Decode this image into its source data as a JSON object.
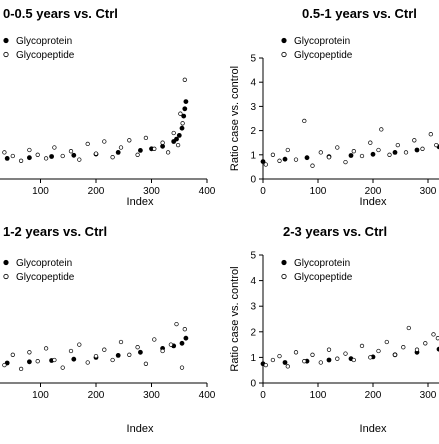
{
  "chart_data": [
    {
      "type": "scatter",
      "title": "0-0.5 years vs. Ctrl",
      "xlabel": "Index",
      "ylabel": "",
      "xlim": [
        0,
        400
      ],
      "ylim": [
        0,
        5
      ],
      "x_ticks": [
        "100",
        "200",
        "300",
        "400"
      ],
      "y_ticks": [],
      "legend_position": "top-left",
      "series": [
        {
          "name": "Glycoprotein",
          "marker": "filled-circle",
          "x": [
            0,
            40,
            80,
            120,
            160,
            200,
            240,
            280,
            300,
            320,
            340,
            345,
            350,
            355,
            358,
            360,
            362
          ],
          "y": [
            0.8,
            0.85,
            0.88,
            0.93,
            0.98,
            1.03,
            1.1,
            1.18,
            1.25,
            1.35,
            1.55,
            1.65,
            1.8,
            2.1,
            2.6,
            2.9,
            3.2
          ]
        },
        {
          "name": "Glycopeptide",
          "marker": "open-circle",
          "x": [
            5,
            20,
            35,
            50,
            65,
            80,
            95,
            110,
            125,
            140,
            155,
            170,
            185,
            200,
            215,
            230,
            245,
            260,
            275,
            290,
            305,
            320,
            330,
            340,
            348,
            352,
            356,
            360
          ],
          "y": [
            0.9,
            0.7,
            1.1,
            0.95,
            0.75,
            1.2,
            1.0,
            0.85,
            1.3,
            0.95,
            1.15,
            0.8,
            1.45,
            1.05,
            1.55,
            0.9,
            1.3,
            1.6,
            1.0,
            1.7,
            1.25,
            1.5,
            1.1,
            1.9,
            1.4,
            2.7,
            2.3,
            4.1
          ]
        }
      ]
    },
    {
      "type": "scatter",
      "title": "0.5-1 years vs. Ctrl",
      "xlabel": "Index",
      "ylabel": "Ratio case vs. control",
      "xlim": [
        0,
        320
      ],
      "ylim": [
        0,
        5
      ],
      "x_ticks": [
        "0",
        "100",
        "200",
        "300"
      ],
      "y_ticks": [
        "0",
        "1",
        "2",
        "3",
        "4",
        "5"
      ],
      "legend_position": "top-left",
      "series": [
        {
          "name": "Glycoprotein",
          "marker": "filled-circle",
          "x": [
            0,
            40,
            80,
            120,
            160,
            200,
            240,
            280,
            320
          ],
          "y": [
            0.72,
            0.82,
            0.88,
            0.92,
            0.97,
            1.02,
            1.1,
            1.2,
            1.33
          ]
        },
        {
          "name": "Glycopeptide",
          "marker": "open-circle",
          "x": [
            5,
            18,
            30,
            45,
            60,
            75,
            90,
            105,
            120,
            135,
            150,
            165,
            180,
            195,
            210,
            215,
            230,
            245,
            260,
            275,
            290,
            305,
            315
          ],
          "y": [
            0.6,
            1.0,
            0.75,
            1.2,
            0.8,
            2.4,
            0.55,
            1.1,
            0.9,
            1.3,
            0.7,
            1.15,
            0.95,
            1.5,
            1.2,
            2.05,
            1.0,
            1.4,
            1.1,
            1.6,
            1.25,
            1.85,
            1.4
          ]
        }
      ]
    },
    {
      "type": "scatter",
      "title": "1-2 years vs. Ctrl",
      "xlabel": "Index",
      "ylabel": "",
      "xlim": [
        0,
        400
      ],
      "ylim": [
        0,
        5
      ],
      "x_ticks": [
        "100",
        "200",
        "300",
        "400"
      ],
      "y_ticks": [],
      "legend_position": "top-left",
      "series": [
        {
          "name": "Glycoprotein",
          "marker": "filled-circle",
          "x": [
            0,
            40,
            80,
            120,
            160,
            200,
            240,
            280,
            320,
            340,
            355,
            362
          ],
          "y": [
            0.72,
            0.78,
            0.83,
            0.88,
            0.93,
            1.0,
            1.08,
            1.2,
            1.35,
            1.45,
            1.55,
            1.75
          ]
        },
        {
          "name": "Glycopeptide",
          "marker": "open-circle",
          "x": [
            5,
            20,
            35,
            50,
            65,
            80,
            95,
            110,
            125,
            140,
            155,
            170,
            185,
            200,
            215,
            230,
            245,
            260,
            275,
            290,
            305,
            320,
            335,
            345,
            355,
            360
          ],
          "y": [
            0.6,
            1.0,
            0.7,
            1.1,
            0.55,
            1.2,
            0.85,
            1.35,
            0.9,
            0.6,
            1.25,
            1.5,
            0.8,
            1.05,
            1.3,
            0.9,
            1.6,
            1.1,
            1.4,
            0.75,
            1.7,
            1.25,
            1.5,
            2.3,
            0.6,
            2.1
          ]
        }
      ]
    },
    {
      "type": "scatter",
      "title": "2-3 years vs. Ctrl",
      "xlabel": "Index",
      "ylabel": "Ratio case vs. control",
      "xlim": [
        0,
        320
      ],
      "ylim": [
        0,
        5
      ],
      "x_ticks": [
        "0",
        "100",
        "200",
        "300"
      ],
      "y_ticks": [
        "0",
        "1",
        "2",
        "3",
        "4",
        "5"
      ],
      "legend_position": "top-left",
      "series": [
        {
          "name": "Glycoprotein",
          "marker": "filled-circle",
          "x": [
            0,
            40,
            80,
            120,
            160,
            200,
            240,
            280,
            320
          ],
          "y": [
            0.75,
            0.8,
            0.85,
            0.9,
            0.95,
            1.02,
            1.1,
            1.2,
            1.32
          ]
        },
        {
          "name": "Glycopeptide",
          "marker": "open-circle",
          "x": [
            5,
            18,
            30,
            45,
            60,
            75,
            90,
            105,
            120,
            135,
            150,
            165,
            180,
            195,
            210,
            225,
            240,
            255,
            265,
            280,
            295,
            310,
            318
          ],
          "y": [
            0.7,
            0.9,
            1.05,
            0.65,
            1.2,
            0.85,
            1.1,
            0.8,
            1.3,
            0.95,
            1.15,
            0.9,
            1.45,
            1.0,
            1.25,
            1.6,
            1.1,
            1.4,
            2.15,
            1.3,
            1.55,
            1.9,
            1.75
          ]
        }
      ]
    }
  ]
}
